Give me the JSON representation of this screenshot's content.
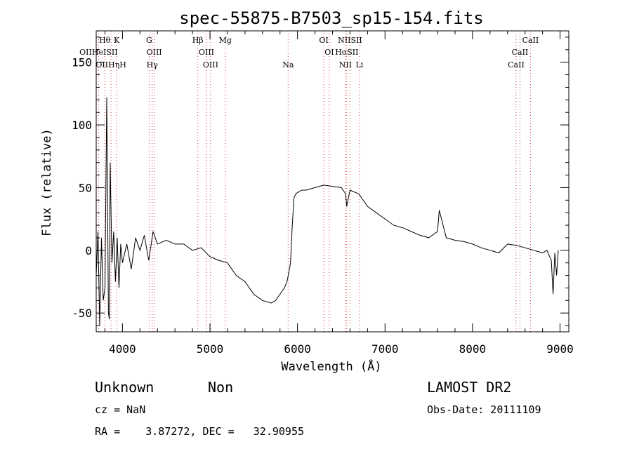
{
  "chart_data": {
    "type": "line",
    "title": "spec-55875-B7503_sp15-154.fits",
    "xlabel": "Wavelength (Å)",
    "ylabel": "Flux (relative)",
    "xlim": [
      3700,
      9100
    ],
    "ylim": [
      -65,
      175
    ],
    "xticks": [
      4000,
      5000,
      6000,
      7000,
      8000,
      9000
    ],
    "yticks": [
      -50,
      0,
      50,
      100,
      150
    ],
    "series": [
      {
        "x": [
          3700,
          3720,
          3740,
          3760,
          3780,
          3800,
          3820,
          3840,
          3850,
          3860,
          3880,
          3900,
          3920,
          3940,
          3960,
          3980,
          4000,
          4050,
          4100,
          4150,
          4200,
          4250,
          4300,
          4350,
          4400,
          4500,
          4600,
          4700,
          4800,
          4900,
          5000,
          5100,
          5200,
          5300,
          5400,
          5500,
          5600,
          5700,
          5750,
          5800,
          5850,
          5880,
          5900,
          5920,
          5940,
          5960,
          5980,
          6000,
          6050,
          6100,
          6200,
          6300,
          6400,
          6500,
          6550,
          6562,
          6600,
          6700,
          6800,
          6900,
          7000,
          7100,
          7200,
          7300,
          7400,
          7500,
          7600,
          7620,
          7700,
          7800,
          7900,
          8000,
          8100,
          8200,
          8300,
          8400,
          8500,
          8600,
          8700,
          8800,
          8850,
          8900,
          8920,
          8940,
          8960,
          8980
        ],
        "y": [
          -20,
          15,
          -60,
          10,
          -40,
          -30,
          122,
          -50,
          -55,
          70,
          -10,
          15,
          -25,
          10,
          -30,
          5,
          -10,
          5,
          -15,
          10,
          0,
          12,
          -8,
          15,
          5,
          8,
          5,
          5,
          0,
          2,
          -5,
          -8,
          -10,
          -20,
          -25,
          -35,
          -40,
          -42,
          -40,
          -35,
          -30,
          -25,
          -18,
          -10,
          20,
          42,
          45,
          46,
          48,
          48,
          50,
          52,
          51,
          50,
          45,
          35,
          48,
          45,
          35,
          30,
          25,
          20,
          18,
          15,
          12,
          10,
          15,
          32,
          10,
          8,
          7,
          5,
          2,
          0,
          -2,
          5,
          4,
          2,
          0,
          -2,
          0,
          -8,
          -35,
          -2,
          -20,
          0
        ]
      }
    ],
    "emission_lines": [
      {
        "label": "Hθ",
        "wavelength": 3798,
        "row": 1
      },
      {
        "label": "K",
        "wavelength": 3934,
        "row": 1
      },
      {
        "label": "G",
        "wavelength": 4305,
        "row": 1
      },
      {
        "label": "Hβ",
        "wavelength": 4861,
        "row": 1
      },
      {
        "label": "Mg",
        "wavelength": 5175,
        "row": 1
      },
      {
        "label": "OI",
        "wavelength": 6300,
        "row": 1
      },
      {
        "label": "NIISII",
        "wavelength": 6600,
        "row": 1
      },
      {
        "label": "CaII",
        "wavelength": 8662,
        "row": 1
      },
      {
        "label": "OIIHeISII",
        "wavelength": 3727,
        "row": 2
      },
      {
        "label": "OIII",
        "wavelength": 4363,
        "row": 2
      },
      {
        "label": "OIII",
        "wavelength": 4959,
        "row": 2
      },
      {
        "label": "OI",
        "wavelength": 6363,
        "row": 2
      },
      {
        "label": "HαSII",
        "wavelength": 6563,
        "row": 2
      },
      {
        "label": "CaII",
        "wavelength": 8542,
        "row": 2
      },
      {
        "label": "OIIHηH",
        "wavelength": 3869,
        "row": 3
      },
      {
        "label": "Hγ",
        "wavelength": 4340,
        "row": 3
      },
      {
        "label": "OIII",
        "wavelength": 5007,
        "row": 3
      },
      {
        "label": "Na",
        "wavelength": 5893,
        "row": 3
      },
      {
        "label": "NII",
        "wavelength": 6548,
        "row": 3
      },
      {
        "label": "Li",
        "wavelength": 6708,
        "row": 3
      },
      {
        "label": "CaII",
        "wavelength": 8498,
        "row": 3
      }
    ],
    "grid": false,
    "legend": "none"
  },
  "info": {
    "class": "Unknown",
    "subclass": "Non",
    "survey": "LAMOST DR2",
    "cz": "cz = NaN",
    "obs_date": "Obs-Date: 20111109",
    "coords": "RA =    3.87272, DEC =   32.90955"
  },
  "colors": {
    "axes": "#000000",
    "spectrum": "#000000",
    "line_markers": "#d04040"
  }
}
